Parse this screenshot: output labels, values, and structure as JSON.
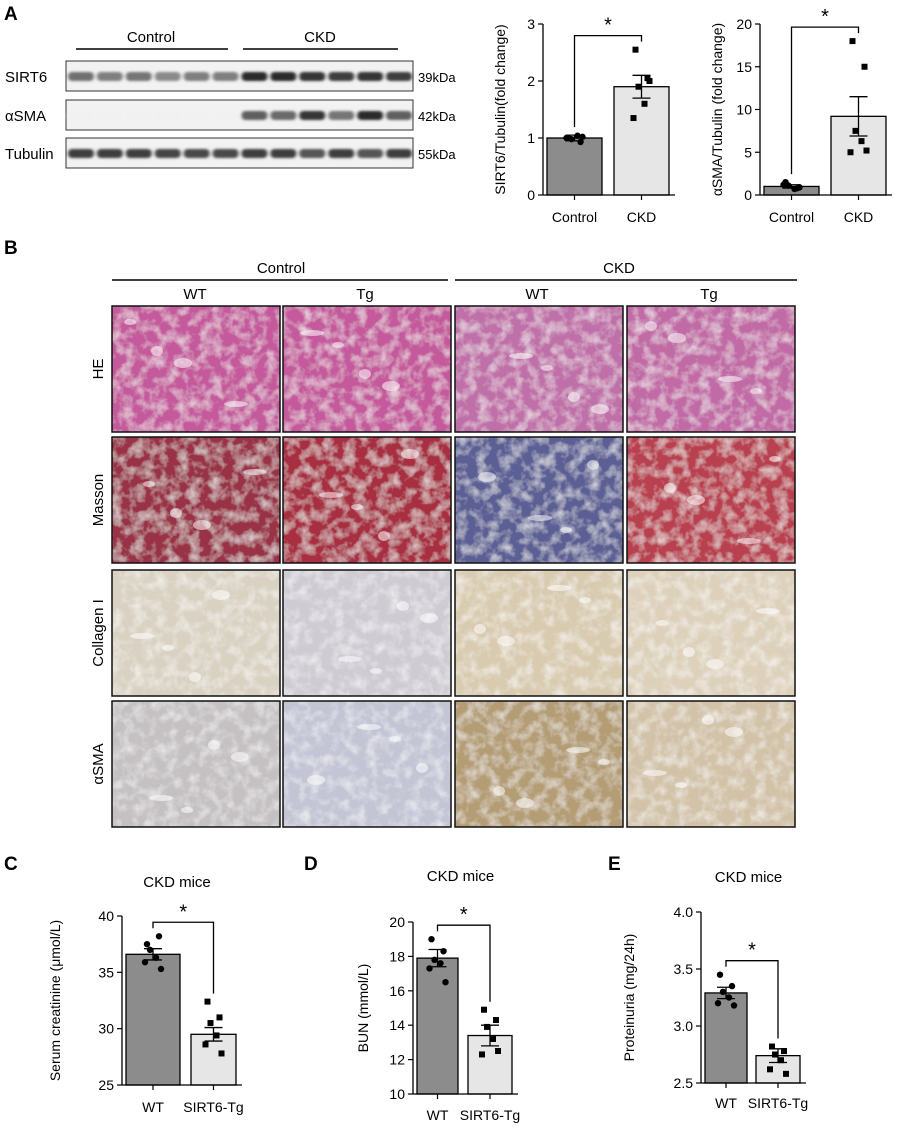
{
  "panel_labels": [
    "A",
    "B",
    "C",
    "D",
    "E"
  ],
  "western_blot": {
    "groups": [
      "Control",
      "CKD"
    ],
    "rows": [
      {
        "name": "SIRT6",
        "kda": "39kDa",
        "lane_intensity": [
          0.62,
          0.55,
          0.6,
          0.5,
          0.55,
          0.55,
          0.95,
          0.95,
          0.9,
          0.85,
          0.9,
          0.85
        ]
      },
      {
        "name": "αSMA",
        "kda": "42kDa",
        "lane_intensity": [
          0.02,
          0.02,
          0.02,
          0.02,
          0.02,
          0.02,
          0.7,
          0.65,
          0.9,
          0.6,
          0.95,
          0.7
        ]
      },
      {
        "name": "Tubulin",
        "kda": "55kDa",
        "lane_intensity": [
          0.85,
          0.85,
          0.85,
          0.82,
          0.8,
          0.8,
          0.85,
          0.85,
          0.75,
          0.85,
          0.75,
          0.85
        ]
      }
    ]
  },
  "histology": {
    "groups": [
      "Control",
      "CKD"
    ],
    "columns": [
      "WT",
      "Tg",
      "WT",
      "Tg"
    ],
    "rows": [
      {
        "label": "HE",
        "colors": [
          "#c45a9c",
          "#c45a9c",
          "#c070a8",
          "#c16aa5"
        ]
      },
      {
        "label": "Masson",
        "colors": [
          "#9a3346",
          "#a82f43",
          "#5c5f94",
          "#b84050"
        ]
      },
      {
        "label": "Collagen I",
        "colors": [
          "#d9d2c3",
          "#cfcbd3",
          "#d8cbb0",
          "#ddd1bc"
        ]
      },
      {
        "label": "αSMA",
        "colors": [
          "#c5c1c3",
          "#c3c4d4",
          "#b49d74",
          "#d2c2a8"
        ]
      }
    ]
  },
  "significance_marker": "*",
  "chart_data": [
    {
      "panel": "A",
      "type": "bar",
      "categories": [
        "Control",
        "CKD"
      ],
      "values": [
        1.0,
        1.9
      ],
      "errors": [
        0.05,
        0.2
      ],
      "points": [
        [
          1.0,
          0.93,
          0.98,
          1.04,
          1.0,
          1.02
        ],
        [
          2.55,
          2.05,
          1.9,
          1.6,
          1.35,
          2.0
        ]
      ],
      "ylabel": "SIRT6/Tubulin(fold change)",
      "ylim": [
        0,
        3
      ],
      "yticks": [
        "0",
        "1",
        "2",
        "3"
      ],
      "bar_colors": [
        "#8c8c8c",
        "#e6e6e6"
      ],
      "marker": [
        "circle",
        "square"
      ],
      "significance": "*"
    },
    {
      "panel": "A",
      "type": "bar",
      "categories": [
        "Control",
        "CKD"
      ],
      "values": [
        1.0,
        9.2
      ],
      "errors": [
        0.2,
        2.3
      ],
      "points": [
        [
          1.5,
          0.8,
          1.1,
          0.7,
          1.2,
          0.9
        ],
        [
          18.0,
          15.0,
          7.5,
          6.3,
          5.0,
          5.2
        ]
      ],
      "ylabel": "αSMA/Tubulin (fold change)",
      "ylim": [
        0,
        20
      ],
      "yticks": [
        "0",
        "5",
        "10",
        "15",
        "20"
      ],
      "bar_colors": [
        "#8c8c8c",
        "#e6e6e6"
      ],
      "marker": [
        "circle",
        "square"
      ],
      "significance": "*"
    },
    {
      "panel": "C",
      "type": "bar",
      "title": "CKD mice",
      "categories": [
        "WT",
        "SIRT6-Tg"
      ],
      "values": [
        36.6,
        29.5
      ],
      "errors": [
        0.5,
        0.6
      ],
      "points": [
        [
          37.5,
          38.2,
          37.0,
          36.3,
          35.9,
          35.3
        ],
        [
          32.4,
          31.0,
          30.5,
          29.4,
          28.6,
          27.8
        ]
      ],
      "ylabel": "Serum creatinine (μmol/L)",
      "ylim": [
        25,
        40
      ],
      "yticks": [
        "25",
        "30",
        "35",
        "40"
      ],
      "bar_colors": [
        "#8c8c8c",
        "#e6e6e6"
      ],
      "marker": [
        "circle",
        "square"
      ],
      "significance": "*"
    },
    {
      "panel": "D",
      "type": "bar",
      "title": "CKD mice",
      "categories": [
        "WT",
        "SIRT6-Tg"
      ],
      "values": [
        17.9,
        13.4
      ],
      "errors": [
        0.5,
        0.6
      ],
      "points": [
        [
          19.0,
          18.3,
          17.8,
          17.6,
          17.3,
          16.5
        ],
        [
          14.9,
          14.3,
          13.9,
          13.2,
          12.3,
          12.5
        ]
      ],
      "ylabel": "BUN (mmol/L)",
      "ylim": [
        10,
        20
      ],
      "yticks": [
        "10",
        "12",
        "14",
        "16",
        "18",
        "20"
      ],
      "bar_colors": [
        "#8c8c8c",
        "#e6e6e6"
      ],
      "marker": [
        "circle",
        "square"
      ],
      "significance": "*"
    },
    {
      "panel": "E",
      "type": "bar",
      "title": "CKD mice",
      "categories": [
        "WT",
        "SIRT6-Tg"
      ],
      "values": [
        3.29,
        2.74
      ],
      "errors": [
        0.05,
        0.06
      ],
      "points": [
        [
          3.45,
          3.35,
          3.3,
          3.25,
          3.2,
          3.18
        ],
        [
          2.82,
          2.78,
          2.75,
          2.7,
          2.62,
          2.58
        ]
      ],
      "ylabel": "Proteinuria (mg/24h)",
      "ylim": [
        2.5,
        4.0
      ],
      "yticks": [
        "2.5",
        "3.0",
        "3.5",
        "4.0"
      ],
      "bar_colors": [
        "#8c8c8c",
        "#e6e6e6"
      ],
      "marker": [
        "circle",
        "square"
      ],
      "significance": "*"
    }
  ]
}
